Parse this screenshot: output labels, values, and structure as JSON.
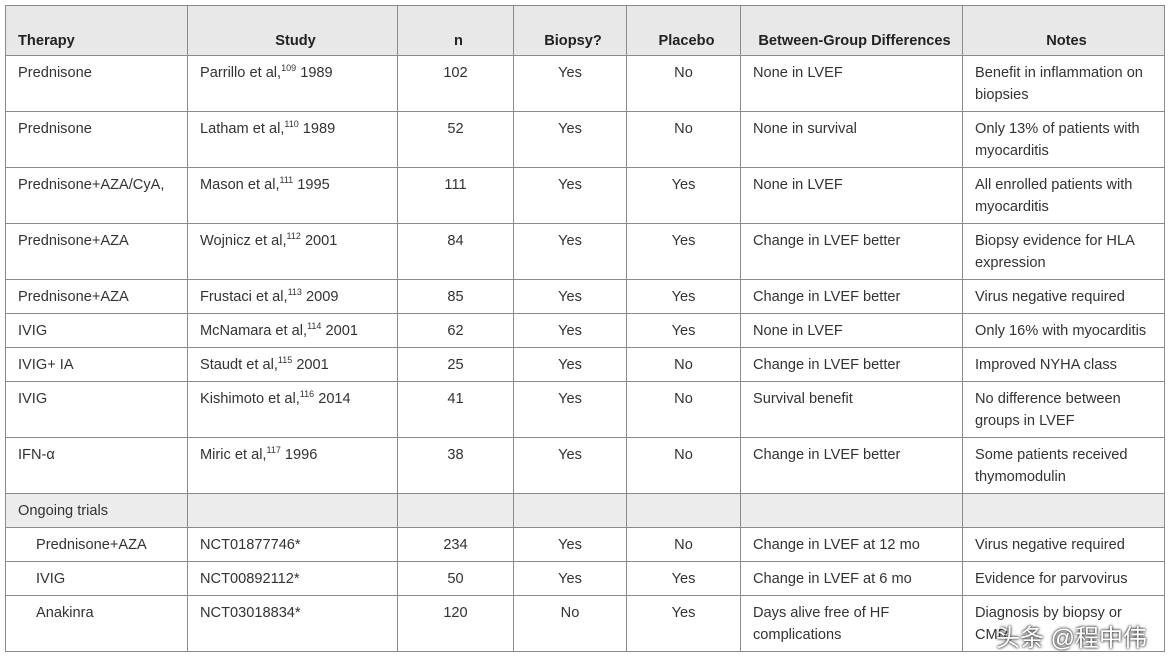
{
  "table": {
    "columns": [
      "Therapy",
      "Study",
      "n",
      "Biopsy?",
      "Placebo",
      "Between-Group Differences",
      "Notes"
    ],
    "rows": [
      {
        "therapy": "Prednisone",
        "study": {
          "author": "Parrillo et al,",
          "ref": "109",
          "year": "1989"
        },
        "n": 102,
        "biopsy": "Yes",
        "placebo": "No",
        "differences": "None in LVEF",
        "notes": "Benefit in inflammation on biopsies"
      },
      {
        "therapy": "Prednisone",
        "study": {
          "author": "Latham et al,",
          "ref": "110",
          "year": "1989"
        },
        "n": 52,
        "biopsy": "Yes",
        "placebo": "No",
        "differences": "None in survival",
        "notes": "Only 13% of patients with myocarditis"
      },
      {
        "therapy": "Prednisone+AZA/CyA,",
        "study": {
          "author": "Mason et al,",
          "ref": "111",
          "year": "1995"
        },
        "n": 111,
        "biopsy": "Yes",
        "placebo": "Yes",
        "differences": "None in LVEF",
        "notes": "All enrolled patients with myocarditis"
      },
      {
        "therapy": "Prednisone+AZA",
        "study": {
          "author": "Wojnicz et al,",
          "ref": "112",
          "year": "2001"
        },
        "n": 84,
        "biopsy": "Yes",
        "placebo": "Yes",
        "differences": "Change in LVEF better",
        "notes": "Biopsy evidence for HLA expression"
      },
      {
        "therapy": "Prednisone+AZA",
        "study": {
          "author": "Frustaci et al,",
          "ref": "113",
          "year": "2009"
        },
        "n": 85,
        "biopsy": "Yes",
        "placebo": "Yes",
        "differences": "Change in LVEF better",
        "notes": "Virus negative required"
      },
      {
        "therapy": "IVIG",
        "study": {
          "author": "McNamara et al,",
          "ref": "114",
          "year": "2001"
        },
        "n": 62,
        "biopsy": "Yes",
        "placebo": "Yes",
        "differences": "None in LVEF",
        "notes": "Only 16% with myocarditis"
      },
      {
        "therapy": "IVIG+ IA",
        "study": {
          "author": "Staudt et al,",
          "ref": "115",
          "year": "2001"
        },
        "n": 25,
        "biopsy": "Yes",
        "placebo": "No",
        "differences": "Change in LVEF better",
        "notes": "Improved NYHA class"
      },
      {
        "therapy": "IVIG",
        "study": {
          "author": "Kishimoto et al,",
          "ref": "116",
          "year": "2014"
        },
        "n": 41,
        "biopsy": "Yes",
        "placebo": "No",
        "differences": "Survival benefit",
        "notes": "No difference between groups in LVEF"
      },
      {
        "therapy": "IFN-α",
        "study": {
          "author": "Miric et al,",
          "ref": "117",
          "year": "1996"
        },
        "n": 38,
        "biopsy": "Yes",
        "placebo": "No",
        "differences": "Change in LVEF better",
        "notes": "Some patients received thymomodulin"
      }
    ],
    "section": "Ongoing trials",
    "ongoing_rows": [
      {
        "therapy": "Prednisone+AZA",
        "study": "NCT01877746*",
        "n": 234,
        "biopsy": "Yes",
        "placebo": "No",
        "differences": "Change in LVEF at 12 mo",
        "notes": "Virus negative required"
      },
      {
        "therapy": "IVIG",
        "study": "NCT00892112*",
        "n": 50,
        "biopsy": "Yes",
        "placebo": "Yes",
        "differences": "Change in LVEF at 6 mo",
        "notes": "Evidence for parvovirus"
      },
      {
        "therapy": "Anakinra",
        "study": "NCT03018834*",
        "n": 120,
        "biopsy": "No",
        "placebo": "Yes",
        "differences": "Days alive free of HF complications",
        "notes": "Diagnosis by biopsy or CMR"
      }
    ]
  },
  "watermark": "头条 @程中伟"
}
